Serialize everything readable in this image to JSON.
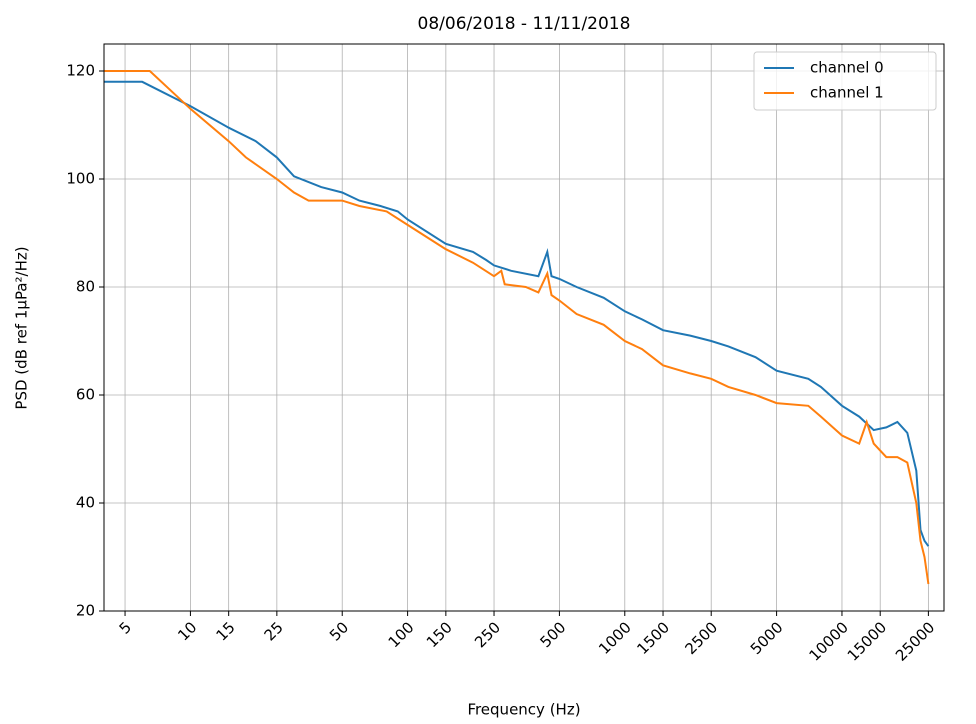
{
  "chart_data": {
    "type": "line",
    "title": "08/06/2018 - 11/11/2018",
    "x_label": "Frequency (Hz)",
    "y_label": "PSD (dB ref 1µPa²/Hz)",
    "x_log": true,
    "grid": true,
    "legend": "upper right",
    "xlim": [
      4,
      29500
    ],
    "ylim": [
      20,
      125
    ],
    "xticks": [
      5,
      10,
      15,
      25,
      50,
      100,
      150,
      250,
      500,
      1000,
      1500,
      2500,
      5000,
      10000,
      15000,
      25000
    ],
    "yticks": [
      20,
      40,
      60,
      80,
      100,
      120
    ],
    "series": [
      {
        "name": "channel 0",
        "color": "#1f77b4",
        "x": [
          4,
          6,
          10,
          15,
          20,
          25,
          30,
          40,
          50,
          60,
          75,
          90,
          100,
          150,
          200,
          230,
          250,
          300,
          400,
          440,
          460,
          500,
          600,
          800,
          1000,
          1200,
          1500,
          2000,
          2500,
          3000,
          4000,
          5000,
          7000,
          8000,
          10000,
          12000,
          14000,
          16000,
          18000,
          20000,
          22000,
          23000,
          24000,
          25000
        ],
        "values": [
          118,
          118,
          113.5,
          109.5,
          107,
          104,
          100.5,
          98.5,
          97.5,
          96,
          95,
          94,
          92.5,
          88,
          86.5,
          85,
          84,
          83,
          82,
          86.5,
          82,
          81.5,
          80,
          78,
          75.5,
          74,
          72,
          71,
          70,
          69,
          67,
          64.5,
          63,
          61.5,
          58,
          56,
          53.5,
          54,
          55,
          53,
          46,
          35,
          33,
          32
        ]
      },
      {
        "name": "channel 1",
        "color": "#ff7f0e",
        "x": [
          4,
          6.5,
          10,
          15,
          18,
          25,
          30,
          35,
          50,
          60,
          80,
          100,
          150,
          200,
          250,
          270,
          280,
          350,
          400,
          440,
          460,
          500,
          600,
          800,
          1000,
          1200,
          1500,
          2000,
          2500,
          3000,
          4000,
          5000,
          7000,
          8000,
          10000,
          12000,
          13000,
          14000,
          16000,
          18000,
          20000,
          22000,
          23000,
          24000,
          25000
        ],
        "values": [
          120,
          120,
          113,
          107,
          104,
          100,
          97.5,
          96,
          96,
          95,
          94,
          91.5,
          87,
          84.5,
          82,
          83,
          80.5,
          80,
          79,
          82.5,
          78.5,
          77.5,
          75,
          73,
          70,
          68.5,
          65.5,
          64,
          63,
          61.5,
          60,
          58.5,
          58,
          56,
          52.5,
          51,
          55,
          51,
          48.5,
          48.5,
          47.5,
          40,
          33,
          30,
          25
        ]
      }
    ]
  }
}
